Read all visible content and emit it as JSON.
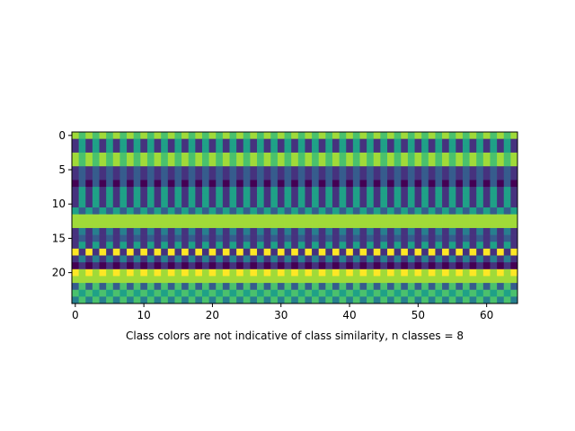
{
  "chart_data": {
    "type": "heatmap",
    "title": "",
    "xlabel": "Class colors are not indicative of class similarity, n classes = 8",
    "ylabel": "",
    "xlim": [
      -0.5,
      64.5
    ],
    "ylim": [
      24.5,
      -0.5
    ],
    "xticks": [
      0,
      10,
      20,
      30,
      40,
      50,
      60
    ],
    "yticks": [
      0,
      5,
      10,
      15,
      20
    ],
    "n_classes": 8,
    "colormap": "viridis",
    "class_colors": [
      "#440154",
      "#46327e",
      "#365c8d",
      "#277f8e",
      "#1fa187",
      "#4ac16d",
      "#a0da39",
      "#fde725"
    ],
    "grid": false,
    "row_classes": [
      [
        6,
        5
      ],
      [
        1,
        4
      ],
      [
        1,
        4
      ],
      [
        6,
        5
      ],
      [
        6,
        5
      ],
      [
        1,
        2
      ],
      [
        1,
        2
      ],
      [
        0,
        2
      ],
      [
        1,
        4
      ],
      [
        1,
        4
      ],
      [
        1,
        4
      ],
      [
        4,
        2
      ],
      [
        6,
        6
      ],
      [
        6,
        6
      ],
      [
        1,
        3
      ],
      [
        1,
        2
      ],
      [
        1,
        4
      ],
      [
        7,
        1
      ],
      [
        1,
        3
      ],
      [
        0,
        1
      ],
      [
        7,
        6
      ],
      [
        6,
        6
      ],
      [
        2,
        5
      ],
      [
        5,
        4
      ],
      [
        3,
        5
      ]
    ]
  }
}
